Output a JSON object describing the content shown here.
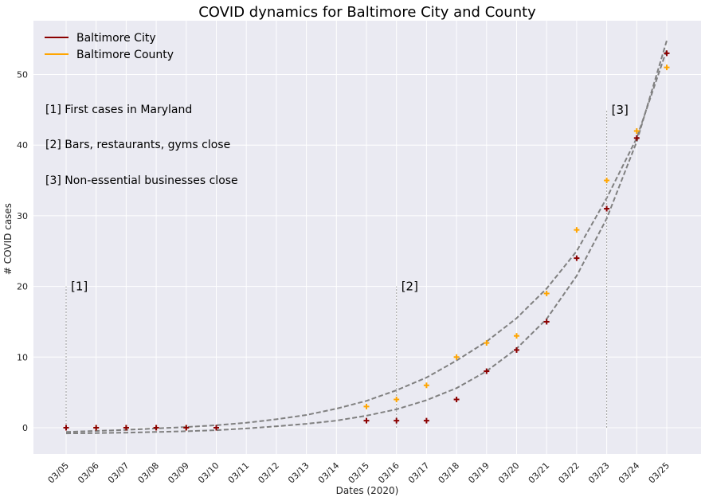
{
  "chart_data": {
    "type": "scatter",
    "title": "COVID dynamics for Baltimore City and County",
    "xlabel": "Dates (2020)",
    "ylabel": "# COVID cases",
    "categories": [
      "03/05",
      "03/06",
      "03/07",
      "03/08",
      "03/09",
      "03/10",
      "03/11",
      "03/12",
      "03/13",
      "03/14",
      "03/15",
      "03/16",
      "03/17",
      "03/18",
      "03/19",
      "03/20",
      "03/21",
      "03/22",
      "03/23",
      "03/24",
      "03/25"
    ],
    "ylim": [
      -4,
      58
    ],
    "yticks": [
      0,
      10,
      20,
      30,
      40,
      50
    ],
    "grid": true,
    "legend_position": "top-left",
    "series": [
      {
        "name": "Baltimore City",
        "color": "#8b0000",
        "marker": "+",
        "values": [
          0,
          0,
          0,
          0,
          0,
          0,
          null,
          null,
          null,
          null,
          1,
          1,
          1,
          4,
          8,
          11,
          15,
          24,
          31,
          41,
          53
        ],
        "fit": [
          -0.8,
          -0.75,
          -0.7,
          -0.6,
          -0.5,
          -0.35,
          -0.1,
          0.2,
          0.55,
          1.0,
          1.7,
          2.6,
          3.9,
          5.6,
          8.0,
          11.2,
          15.4,
          21.5,
          29.6,
          40.5,
          54.8
        ]
      },
      {
        "name": "Baltimore County",
        "color": "#ffa500",
        "marker": "+",
        "values": [
          0,
          0,
          0,
          0,
          0,
          0,
          null,
          null,
          null,
          null,
          3,
          4,
          6,
          10,
          12,
          13,
          19,
          28,
          35,
          42,
          51
        ],
        "fit": [
          -0.6,
          -0.45,
          -0.3,
          -0.1,
          0.1,
          0.35,
          0.7,
          1.2,
          1.8,
          2.7,
          3.8,
          5.3,
          7.1,
          9.5,
          12.2,
          15.5,
          19.7,
          25.0,
          32.5,
          41.0,
          53.5
        ]
      }
    ],
    "annotations": [
      {
        "label": "[1]",
        "x_index": 0,
        "y": 20
      },
      {
        "label": "[2]",
        "x_index": 11,
        "y": 20
      },
      {
        "label": "[3]",
        "x_index": 18,
        "y": 45
      }
    ],
    "notes": [
      "[1] First cases in Maryland",
      "[2] Bars, restaurants, gyms close",
      "[3] Non-essential businesses close"
    ]
  }
}
